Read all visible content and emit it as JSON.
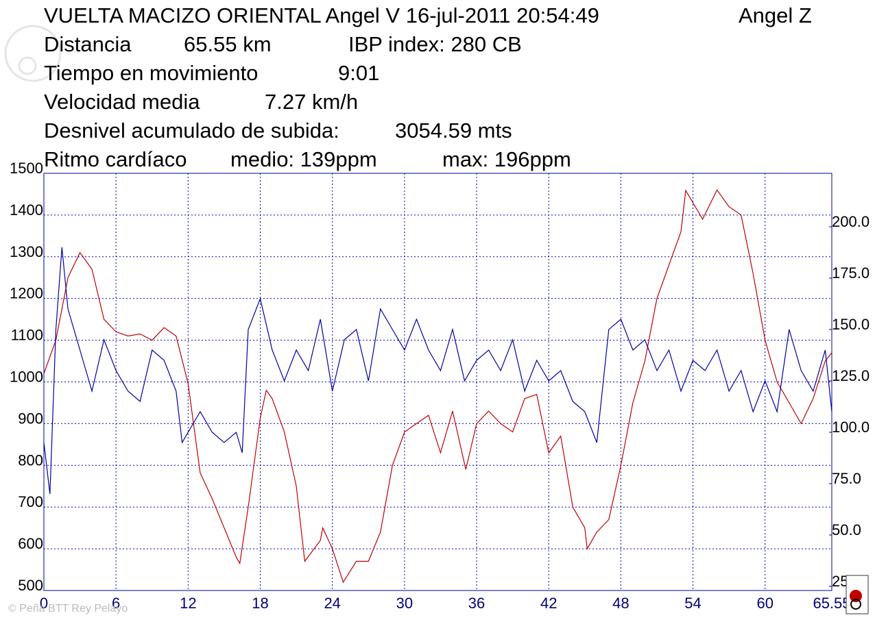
{
  "chart_data": {
    "type": "line",
    "title": "VUELTA MACIZO ORIENTAL Angel V 16-jul-2011 20:54:49",
    "rider": "Angel Z",
    "stats": [
      {
        "label": "Distancia",
        "value": "65.55 km",
        "extra": "IBP index: 280 CB"
      },
      {
        "label": "Tiempo en movimiento",
        "value": "9:01"
      },
      {
        "label": "Velocidad media",
        "value": "7.27 km/h"
      },
      {
        "label": "Desnivel acumulado de subida:",
        "value": "3054.59 mts"
      },
      {
        "label": "Ritmo cardíaco",
        "value": "medio: 139ppm",
        "extra": "max: 196ppm"
      }
    ],
    "copyright": "© Peña BTT Rey Pelayo",
    "xlim": [
      0,
      65.55
    ],
    "xticks": [
      0,
      6,
      12,
      18,
      24,
      30,
      36,
      42,
      48,
      54,
      60,
      {
        "value": 65.55,
        "label": "65.55"
      }
    ],
    "ylim": [
      500,
      1500
    ],
    "yticks": [
      500,
      600,
      700,
      800,
      900,
      1000,
      1100,
      1200,
      1300,
      1400,
      1500
    ],
    "y2lim": [
      23,
      226
    ],
    "y2ticks": [
      {
        "value": 25,
        "label": "25.0"
      },
      {
        "value": 50,
        "label": "50.0"
      },
      {
        "value": 75,
        "label": "75.0"
      },
      {
        "value": 100,
        "label": "100.0"
      },
      {
        "value": 125,
        "label": "125.0"
      },
      {
        "value": 150,
        "label": "150.0"
      },
      {
        "value": 175,
        "label": "175.0"
      },
      {
        "value": 200,
        "label": "200.0"
      }
    ],
    "grid": true,
    "series": [
      {
        "color": "#c00000",
        "x": [
          0,
          1,
          2,
          3,
          4,
          5,
          6,
          7,
          8,
          9,
          10,
          11,
          12,
          13,
          14,
          15,
          16,
          16.3,
          17,
          18,
          18.5,
          19,
          20,
          21,
          21.7,
          23,
          23.2,
          24,
          24.9,
          26,
          27,
          28,
          29,
          30,
          31,
          32,
          33,
          34,
          35.1,
          36,
          37,
          38,
          39,
          40,
          41,
          42,
          43,
          44,
          45,
          45.2,
          46,
          47,
          48,
          49,
          50,
          51,
          52,
          53,
          53.4,
          54.8,
          56,
          57,
          58,
          59,
          60,
          61,
          62,
          63,
          64,
          65,
          65.55
        ],
        "values": [
          1020,
          1100,
          1250,
          1310,
          1270,
          1150,
          1120,
          1110,
          1115,
          1100,
          1130,
          1110,
          996,
          782,
          720,
          650,
          580,
          565,
          700,
          913,
          980,
          960,
          880,
          750,
          570,
          620,
          650,
          600,
          520,
          570,
          570,
          640,
          800,
          880,
          900,
          920,
          830,
          930,
          790,
          900,
          930,
          900,
          880,
          960,
          970,
          830,
          870,
          700,
          650,
          600,
          640,
          670,
          800,
          950,
          1050,
          1200,
          1280,
          1360,
          1459,
          1390,
          1460,
          1420,
          1400,
          1260,
          1100,
          1000,
          950,
          900,
          960,
          1050,
          1070
        ]
      },
      {
        "color": "#0000a0",
        "axis": "y2",
        "x": [
          0,
          0.5,
          1,
          1.5,
          2,
          3,
          4,
          5,
          6,
          7,
          8,
          9,
          10,
          11,
          11.5,
          12,
          13,
          14,
          15,
          16,
          16.5,
          17,
          18,
          19,
          20,
          21,
          22,
          23,
          24,
          25,
          26,
          27,
          28,
          29,
          30,
          31,
          32,
          33,
          34,
          35,
          36,
          37,
          38,
          39,
          40,
          41,
          42,
          43,
          44,
          45,
          46,
          47,
          48,
          49,
          50,
          51,
          52,
          53,
          54,
          55,
          56,
          57,
          58,
          59,
          60,
          61,
          62,
          63,
          64,
          65,
          65.55
        ],
        "values": [
          95,
          70,
          150,
          190,
          160,
          140,
          120,
          145,
          130,
          120,
          115,
          140,
          135,
          120,
          95,
          100,
          110,
          100,
          95,
          100,
          90,
          150,
          165,
          140,
          125,
          140,
          130,
          155,
          120,
          145,
          150,
          125,
          160,
          150,
          140,
          155,
          140,
          130,
          150,
          125,
          135,
          140,
          130,
          145,
          120,
          135,
          125,
          130,
          115,
          110,
          95,
          150,
          155,
          140,
          145,
          130,
          140,
          120,
          135,
          130,
          140,
          120,
          130,
          110,
          125,
          110,
          150,
          130,
          120,
          140,
          110
        ]
      }
    ]
  }
}
